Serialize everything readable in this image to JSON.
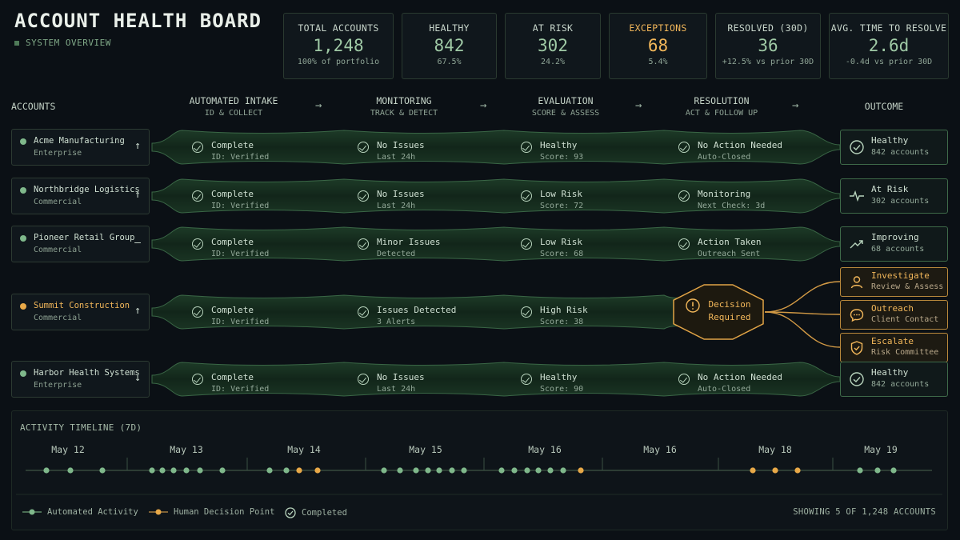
{
  "header": {
    "title": "ACCOUNT HEALTH BOARD",
    "subtitle": "SYSTEM OVERVIEW"
  },
  "stats": [
    {
      "label": "TOTAL ACCOUNTS",
      "value": "1,248",
      "sub": "100% of portfolio"
    },
    {
      "label": "HEALTHY",
      "value": "842",
      "sub": "67.5%"
    },
    {
      "label": "AT RISK",
      "value": "302",
      "sub": "24.2%"
    },
    {
      "label": "EXCEPTIONS",
      "value": "68",
      "sub": "5.4%"
    },
    {
      "label": "RESOLVED (30D)",
      "value": "36",
      "sub": "+12.5% vs prior 30D"
    },
    {
      "label": "AVG. TIME TO RESOLVE",
      "value": "2.6d",
      "sub": "-0.4d vs prior 30D"
    }
  ],
  "stages": [
    {
      "name": "ACCOUNTS",
      "sub": ""
    },
    {
      "name": "AUTOMATED INTAKE",
      "sub": "ID & COLLECT"
    },
    {
      "name": "MONITORING",
      "sub": "TRACK & DETECT"
    },
    {
      "name": "EVALUATION",
      "sub": "SCORE & ASSESS"
    },
    {
      "name": "RESOLUTION",
      "sub": "ACT & FOLLOW UP"
    },
    {
      "name": "OUTCOME",
      "sub": ""
    }
  ],
  "stage_arrow": "→",
  "accounts": [
    {
      "name": "Acme Manufacturing",
      "type": "Enterprise",
      "trend": "↑",
      "steps": [
        [
          "Complete",
          "ID: Verified"
        ],
        [
          "No Issues",
          "Last 24h"
        ],
        [
          "Healthy",
          "Score: 93"
        ],
        [
          "No Action Needed",
          "Auto-Closed"
        ]
      ],
      "outcome": [
        "Healthy",
        "842 accounts"
      ]
    },
    {
      "name": "Northbridge Logistics",
      "type": "Commercial",
      "trend": "↑",
      "steps": [
        [
          "Complete",
          "ID: Verified"
        ],
        [
          "No Issues",
          "Last 24h"
        ],
        [
          "Low Risk",
          "Score: 72"
        ],
        [
          "Monitoring",
          "Next Check: 3d"
        ]
      ],
      "outcome": [
        "At Risk",
        "302 accounts"
      ]
    },
    {
      "name": "Pioneer Retail Group",
      "type": "Commercial",
      "trend": "—",
      "steps": [
        [
          "Complete",
          "ID: Verified"
        ],
        [
          "Minor Issues",
          "Detected"
        ],
        [
          "Low Risk",
          "Score: 68"
        ],
        [
          "Action Taken",
          "Outreach Sent"
        ]
      ],
      "outcome": [
        "Improving",
        "68 accounts"
      ]
    },
    {
      "name": "Summit Construction",
      "type": "Commercial",
      "trend": "↑",
      "steps": [
        [
          "Complete",
          "ID: Verified"
        ],
        [
          "Issues Detected",
          "3 Alerts"
        ],
        [
          "High Risk",
          "Score: 38"
        ]
      ],
      "decision": [
        "Decision",
        "Required"
      ],
      "options": [
        [
          "Investigate",
          "Review & Assess"
        ],
        [
          "Outreach",
          "Client Contact"
        ],
        [
          "Escalate",
          "Risk Committee"
        ]
      ]
    },
    {
      "name": "Harbor Health Systems",
      "type": "Enterprise",
      "trend": "↓",
      "steps": [
        [
          "Complete",
          "ID: Verified"
        ],
        [
          "No Issues",
          "Last 24h"
        ],
        [
          "Healthy",
          "Score: 90"
        ],
        [
          "No Action Needed",
          "Auto-Closed"
        ]
      ],
      "outcome": [
        "Healthy",
        "842 accounts"
      ]
    }
  ],
  "timeline": {
    "title": "ACTIVITY TIMELINE (7D)",
    "days": [
      "May 12",
      "May 13",
      "May 14",
      "May 15",
      "May 16",
      "May 16",
      "May 18",
      "May 19"
    ],
    "legend": {
      "automated": "Automated Activity",
      "human": "Human Decision Point",
      "completed": "Completed"
    },
    "showing": "SHOWING 5 OF 1,248 ACCOUNTS"
  },
  "colors": {
    "accent_green": "#7fb88b",
    "warning": "#f2b75a",
    "background": "#0b1015"
  }
}
